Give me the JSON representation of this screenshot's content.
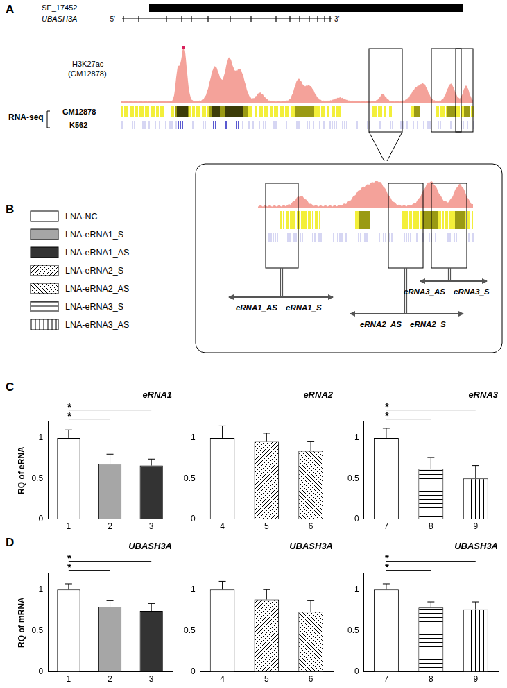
{
  "figure": {
    "panels": [
      "A",
      "B",
      "C",
      "D"
    ],
    "super_enhancer": "SE_17452",
    "gene": "UBASH3A",
    "five_prime": "5'",
    "three_prime": "3'",
    "chip_label": [
      "H3K27ac",
      "(GM12878)"
    ],
    "rnaseq_label": "RNA-seq",
    "cell_lines": [
      "GM12878",
      "K562"
    ],
    "erna_labels": [
      {
        "as": "eRNA1_AS",
        "s": "eRNA1_S"
      },
      {
        "as": "eRNA2_AS",
        "s": "eRNA2_S"
      },
      {
        "as": "eRNA3_AS",
        "s": "eRNA3_S"
      }
    ],
    "legend": [
      {
        "label": "LNA-NC",
        "color": "#ffffff"
      },
      {
        "label": "LNA-eRNA1_S",
        "color": "#a6a6a6"
      },
      {
        "label": "LNA-eRNA1_AS",
        "color": "#333333"
      },
      {
        "label": "LNA-eRNA2_S",
        "color": "#ffffff"
      },
      {
        "label": "LNA-eRNA2_AS",
        "color": "#ffffff"
      },
      {
        "label": "LNA-eRNA3_S",
        "color": "#ffffff"
      },
      {
        "label": "LNA-eRNA3_AS",
        "color": "#ffffff"
      }
    ]
  },
  "chart_data": [
    {
      "type": "bar",
      "title": "eRNA1",
      "y_label": "RQ of eRNA",
      "categories": [
        "1",
        "2",
        "3"
      ],
      "values": [
        1.0,
        0.68,
        0.66
      ],
      "errors": [
        0.1,
        0.12,
        0.08
      ],
      "colors": [
        "#ffffff",
        "#a6a6a6",
        "#333333"
      ],
      "ylim": [
        0,
        1.2
      ],
      "yticks": [
        0,
        0.5,
        1
      ],
      "grid": false,
      "significance": [
        {
          "from": "1",
          "to": "3",
          "label": "*"
        },
        {
          "from": "1",
          "to": "2",
          "label": "*"
        }
      ]
    },
    {
      "type": "bar",
      "title": "eRNA2",
      "categories": [
        "4",
        "5",
        "6"
      ],
      "values": [
        1.0,
        0.96,
        0.84
      ],
      "errors": [
        0.15,
        0.1,
        0.12
      ],
      "colors": [
        "#ffffff",
        "#ffffff",
        "#ffffff"
      ],
      "ylim": [
        0,
        1.2
      ],
      "yticks": [
        0,
        0.5,
        1
      ],
      "grid": false,
      "significance": []
    },
    {
      "type": "bar",
      "title": "eRNA3",
      "categories": [
        "7",
        "8",
        "9"
      ],
      "values": [
        1.0,
        0.62,
        0.5
      ],
      "errors": [
        0.12,
        0.14,
        0.16
      ],
      "colors": [
        "#ffffff",
        "#ffffff",
        "#ffffff"
      ],
      "ylim": [
        0,
        1.2
      ],
      "yticks": [
        0,
        0.5,
        1
      ],
      "grid": false,
      "significance": [
        {
          "from": "7",
          "to": "9",
          "label": "*"
        },
        {
          "from": "7",
          "to": "8",
          "label": "*"
        }
      ]
    },
    {
      "type": "bar",
      "title": "UBASH3A",
      "y_label": "RQ of mRNA",
      "categories": [
        "1",
        "2",
        "3"
      ],
      "values": [
        1.0,
        0.79,
        0.74
      ],
      "errors": [
        0.07,
        0.08,
        0.09
      ],
      "colors": [
        "#ffffff",
        "#a6a6a6",
        "#333333"
      ],
      "ylim": [
        0,
        1.2
      ],
      "yticks": [
        0,
        0.5,
        1
      ],
      "grid": false,
      "significance": [
        {
          "from": "1",
          "to": "3",
          "label": "*"
        },
        {
          "from": "1",
          "to": "2",
          "label": "*"
        }
      ]
    },
    {
      "type": "bar",
      "title": "UBASH3A",
      "categories": [
        "4",
        "5",
        "6"
      ],
      "values": [
        1.0,
        0.88,
        0.73
      ],
      "errors": [
        0.1,
        0.12,
        0.14
      ],
      "colors": [
        "#ffffff",
        "#ffffff",
        "#ffffff"
      ],
      "ylim": [
        0,
        1.2
      ],
      "yticks": [
        0,
        0.5,
        1
      ],
      "grid": false,
      "significance": []
    },
    {
      "type": "bar",
      "title": "UBASH3A",
      "categories": [
        "7",
        "8",
        "9"
      ],
      "values": [
        1.0,
        0.78,
        0.76
      ],
      "errors": [
        0.07,
        0.07,
        0.09
      ],
      "colors": [
        "#ffffff",
        "#ffffff",
        "#ffffff"
      ],
      "ylim": [
        0,
        1.2
      ],
      "yticks": [
        0,
        0.5,
        1
      ],
      "grid": false,
      "significance": [
        {
          "from": "7",
          "to": "9",
          "label": "*"
        },
        {
          "from": "7",
          "to": "8",
          "label": "*"
        }
      ]
    }
  ]
}
